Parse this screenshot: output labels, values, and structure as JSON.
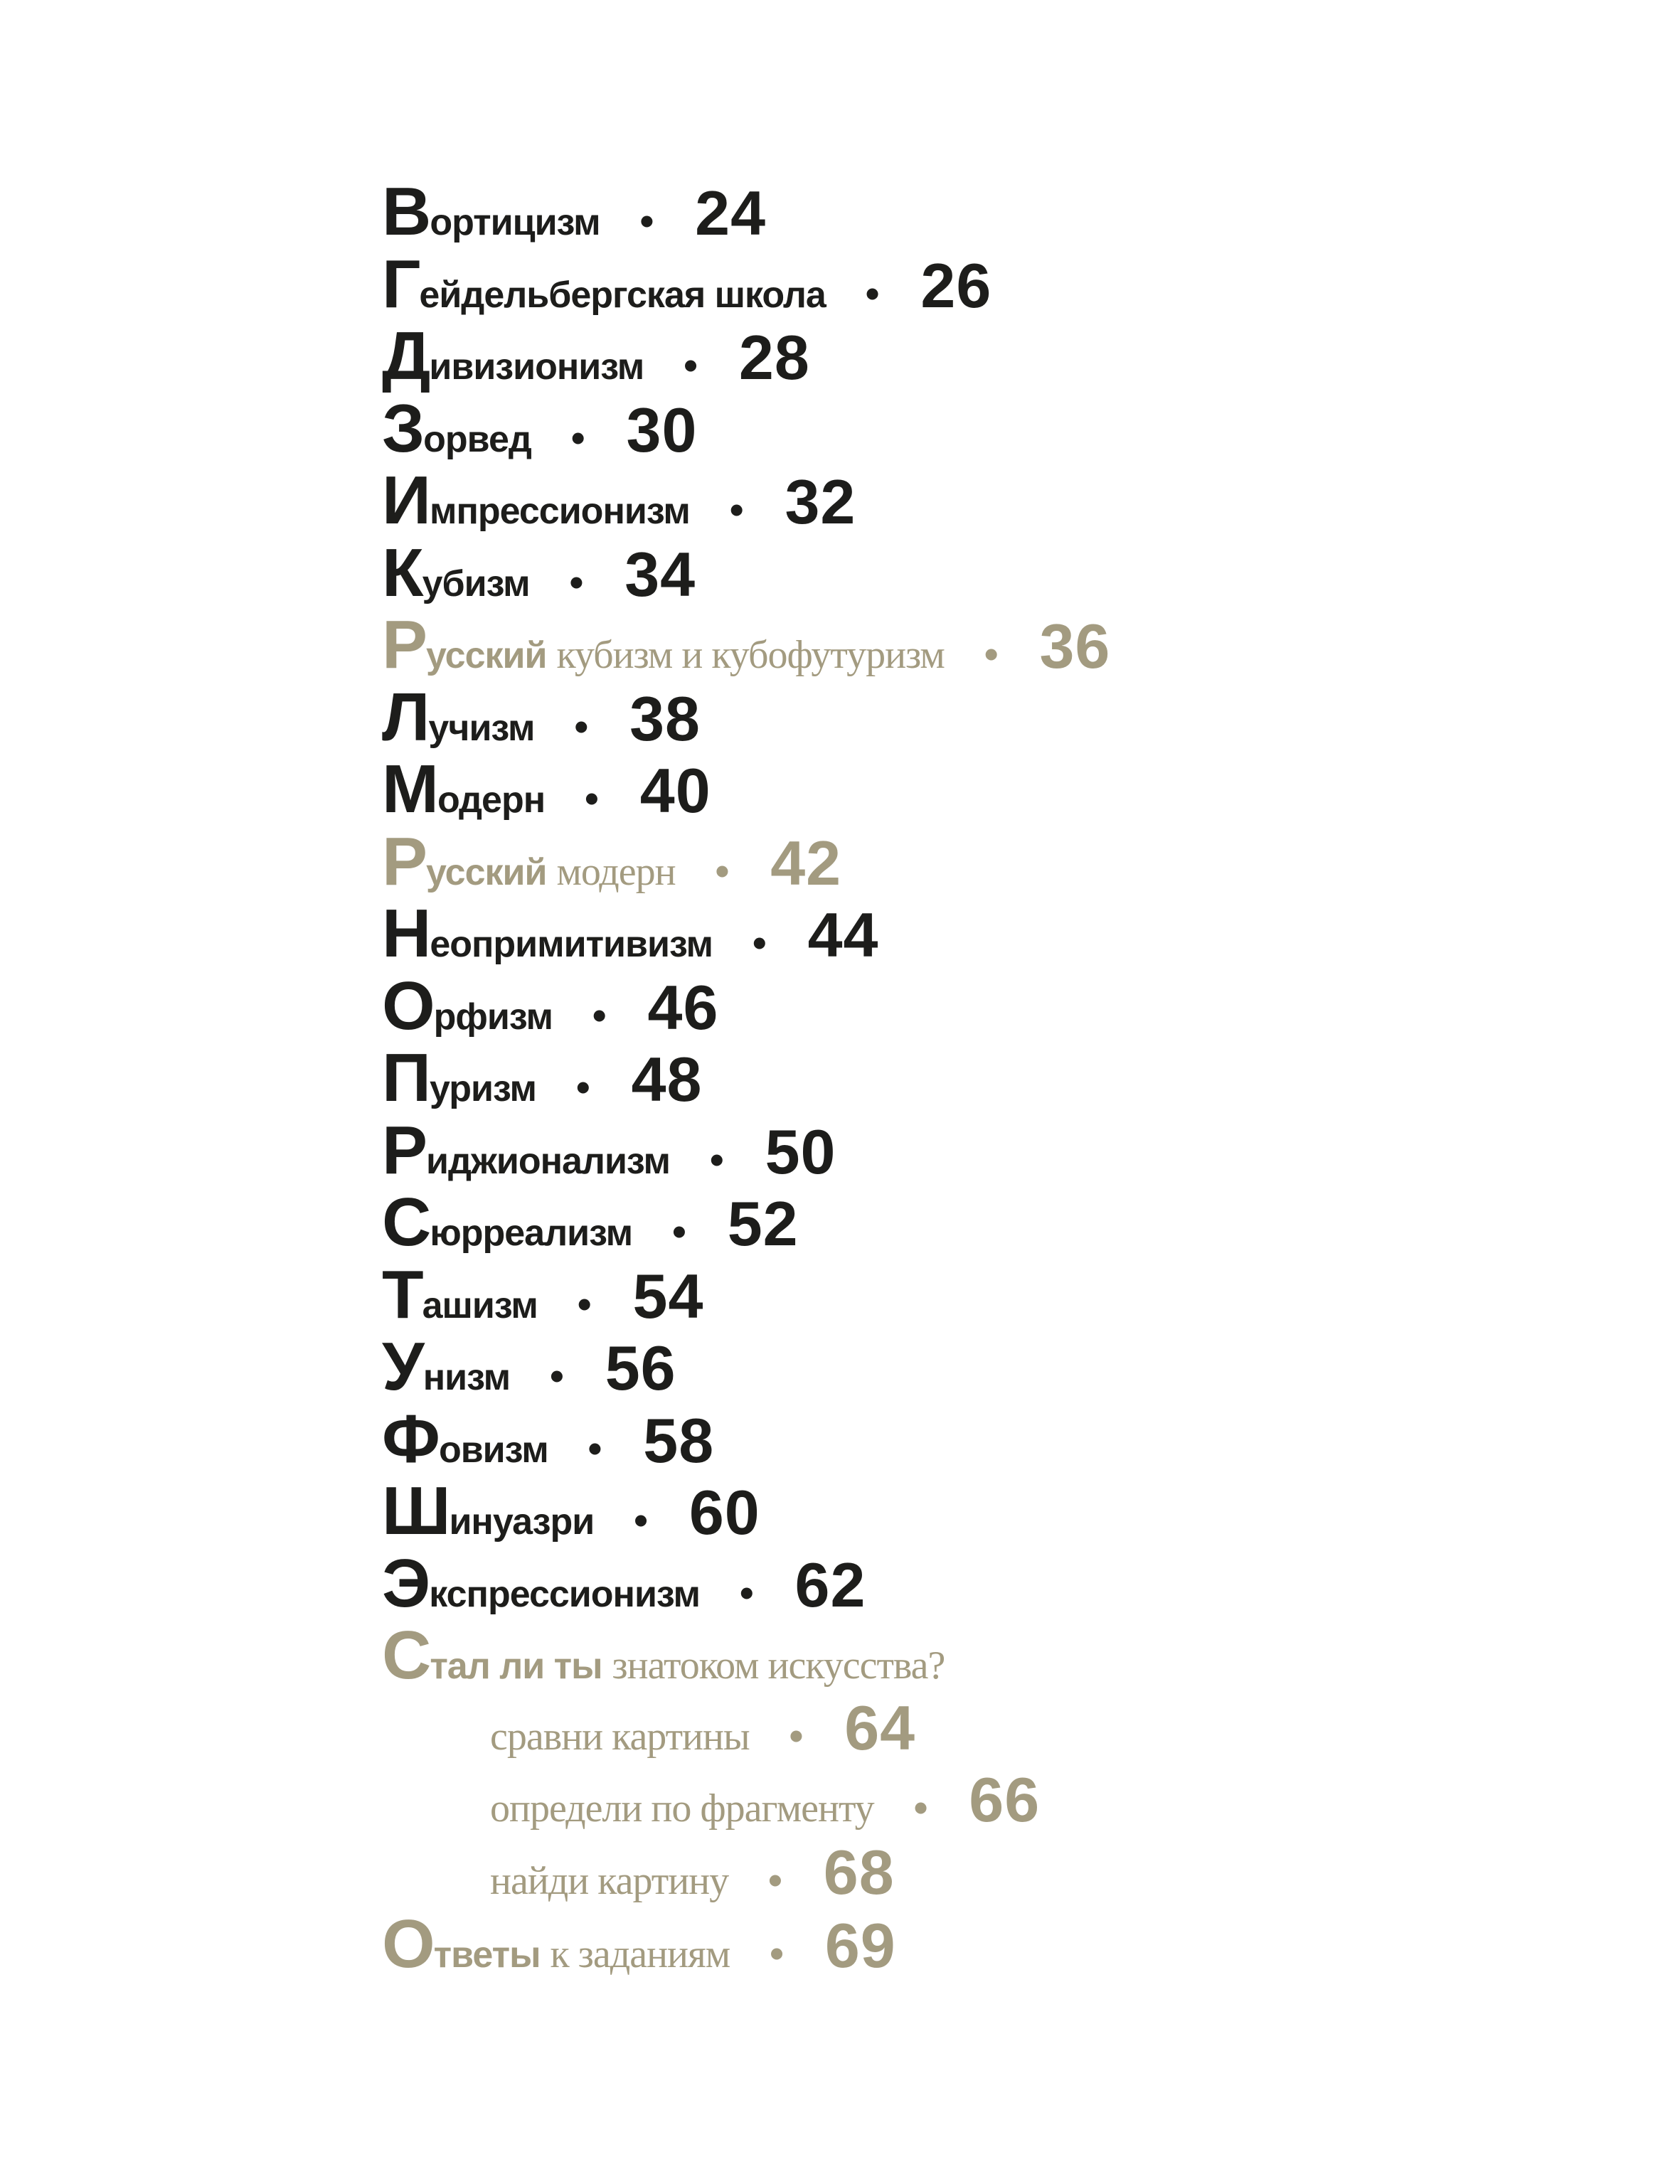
{
  "colors": {
    "primary": "#1d1d1b",
    "accent": "#a39b80"
  },
  "toc": [
    {
      "cap": "В",
      "bold": "ортицизм",
      "serif": "",
      "page": "24",
      "accent": false,
      "indent": false
    },
    {
      "cap": "Г",
      "bold": "ейдельбергская школа",
      "serif": "",
      "page": "26",
      "accent": false,
      "indent": false
    },
    {
      "cap": "Д",
      "bold": "ивизионизм",
      "serif": "",
      "page": "28",
      "accent": false,
      "indent": false
    },
    {
      "cap": "З",
      "bold": "орвед",
      "serif": "",
      "page": "30",
      "accent": false,
      "indent": false
    },
    {
      "cap": "И",
      "bold": "мпрессионизм",
      "serif": "",
      "page": "32",
      "accent": false,
      "indent": false
    },
    {
      "cap": "К",
      "bold": "убизм",
      "serif": "",
      "page": "34",
      "accent": false,
      "indent": false
    },
    {
      "cap": "Р",
      "bold": "усский",
      "serif": "кубизм и кубофутуризм",
      "page": "36",
      "accent": true,
      "indent": false
    },
    {
      "cap": "Л",
      "bold": "учизм",
      "serif": "",
      "page": "38",
      "accent": false,
      "indent": false
    },
    {
      "cap": "М",
      "bold": "одерн",
      "serif": "",
      "page": "40",
      "accent": false,
      "indent": false
    },
    {
      "cap": "Р",
      "bold": "усский",
      "serif": "модерн",
      "page": "42",
      "accent": true,
      "indent": false
    },
    {
      "cap": "Н",
      "bold": "еопримитивизм",
      "serif": "",
      "page": "44",
      "accent": false,
      "indent": false
    },
    {
      "cap": "О",
      "bold": "рфизм",
      "serif": "",
      "page": "46",
      "accent": false,
      "indent": false
    },
    {
      "cap": "П",
      "bold": "уризм",
      "serif": "",
      "page": "48",
      "accent": false,
      "indent": false
    },
    {
      "cap": "Р",
      "bold": "иджионализм",
      "serif": "",
      "page": "50",
      "accent": false,
      "indent": false
    },
    {
      "cap": "С",
      "bold": "юрреализм",
      "serif": "",
      "page": "52",
      "accent": false,
      "indent": false
    },
    {
      "cap": "Т",
      "bold": "ашизм",
      "serif": "",
      "page": "54",
      "accent": false,
      "indent": false
    },
    {
      "cap": "У",
      "bold": "низм",
      "serif": "",
      "page": "56",
      "accent": false,
      "indent": false
    },
    {
      "cap": "Ф",
      "bold": "овизм",
      "serif": "",
      "page": "58",
      "accent": false,
      "indent": false
    },
    {
      "cap": "Ш",
      "bold": "инуазри",
      "serif": "",
      "page": "60",
      "accent": false,
      "indent": false
    },
    {
      "cap": "Э",
      "bold": "кспрессионизм",
      "serif": "",
      "page": "62",
      "accent": false,
      "indent": false
    },
    {
      "cap": "С",
      "bold": "тал ли ты",
      "serif": "знатоком искусства?",
      "page": "",
      "accent": true,
      "indent": false
    },
    {
      "cap": "",
      "bold": "",
      "serif": "сравни картины",
      "page": "64",
      "accent": true,
      "indent": true
    },
    {
      "cap": "",
      "bold": "",
      "serif": "определи по фрагменту",
      "page": "66",
      "accent": true,
      "indent": true
    },
    {
      "cap": "",
      "bold": "",
      "serif": "найди картину",
      "page": "68",
      "accent": true,
      "indent": true
    },
    {
      "cap": "О",
      "bold": "тветы",
      "serif": "к заданиям",
      "page": "69",
      "accent": true,
      "indent": false
    }
  ]
}
